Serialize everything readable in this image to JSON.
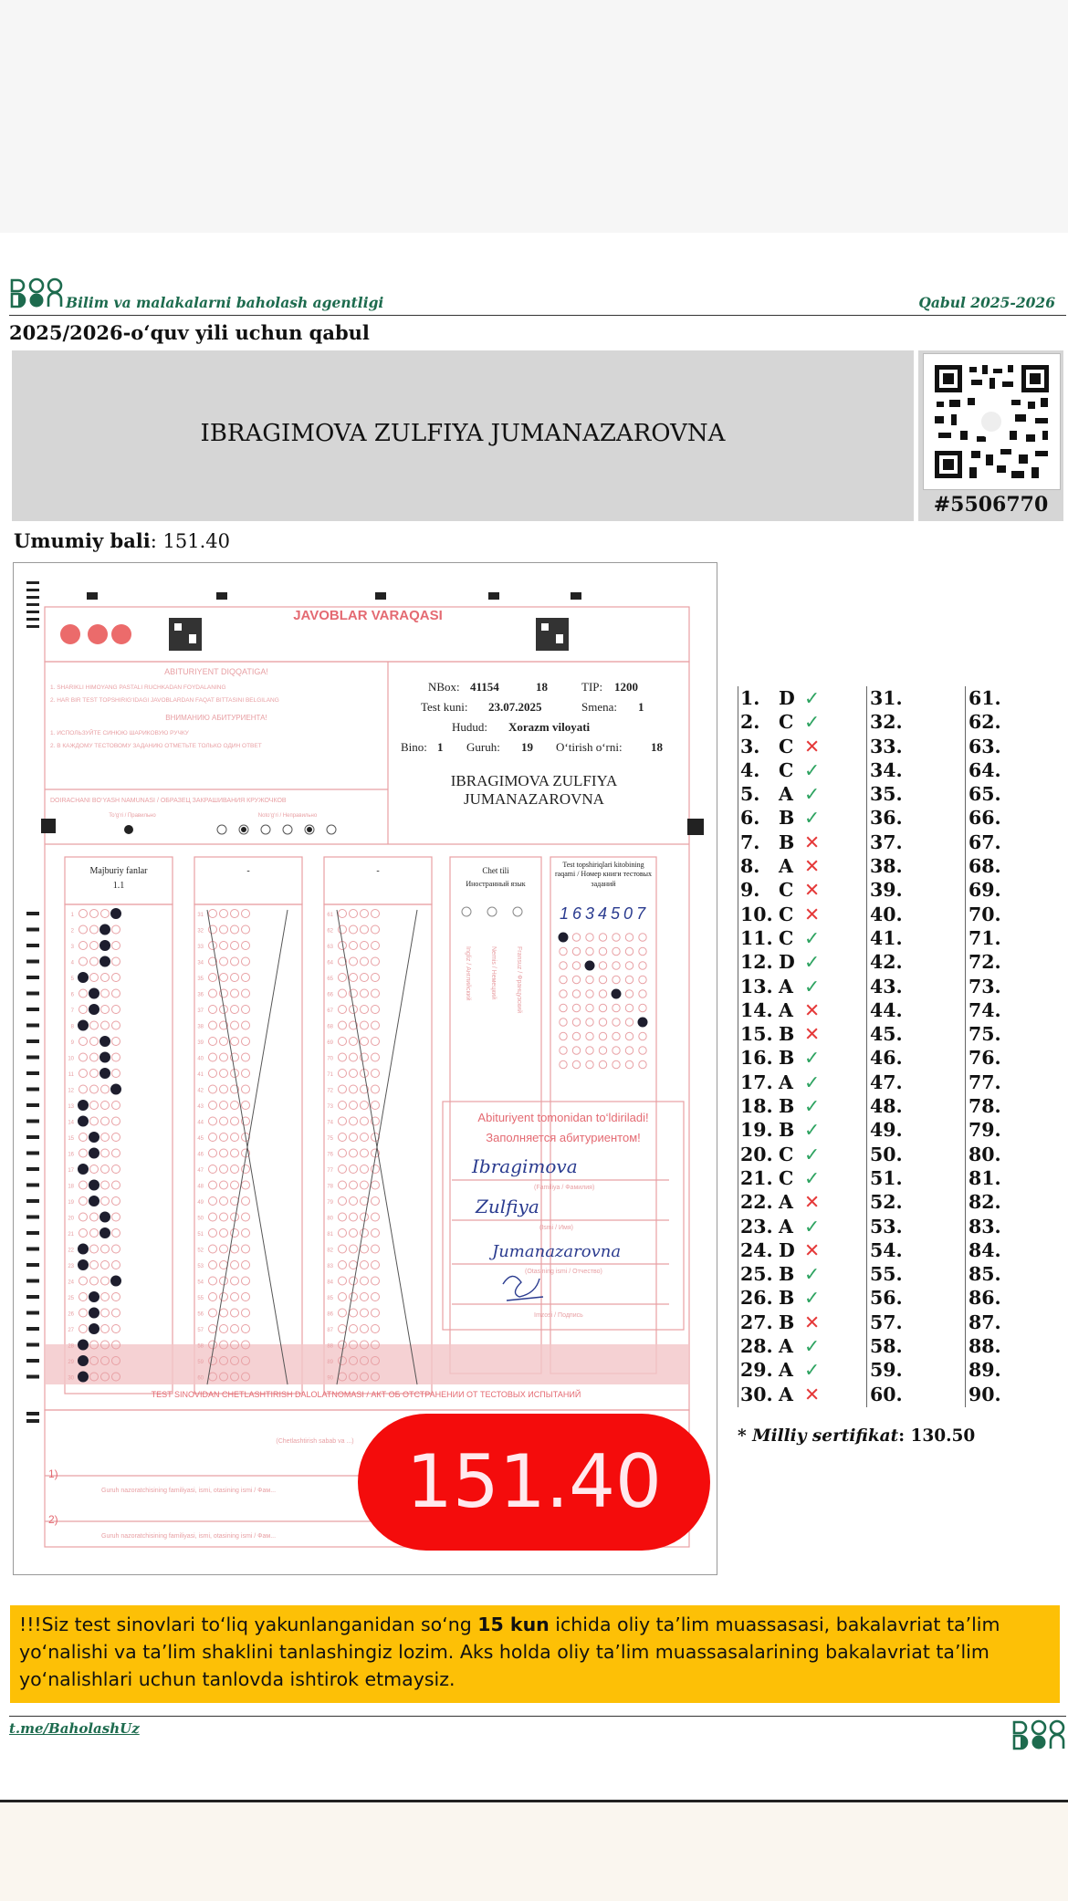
{
  "header": {
    "agency": "Bilim va malakalarni baholash agentligi",
    "year": "Qabul 2025-2026",
    "admission_title": "2025/2026-o‘quv yili uchun qabul"
  },
  "candidate": {
    "full_name": "IBRAGIMOVA ZULFIYA JUMANAZAROVNA",
    "id": "#5506770",
    "score_label": "Umumiy bali",
    "score_value": "151.40"
  },
  "sheet": {
    "title": "JAVOBLAR VARAQASI",
    "attention_title": "ABITURIYENT DIQQATIGA!",
    "attention_1": "1. SHARIKLI HIMOYANG PASTALI RUCHKADAN FOYDALANING",
    "attention_2": "2. HAR BIR TEST TOPSHIRIG‘IDAGI JAVOBLARDAN FAQAT BITTASINI BELGILANG",
    "attention_ru_title": "ВНИМАНИЮ АБИТУРИЕНТА!",
    "attention_ru_1": "1. ИСПОЛЬЗУЙТЕ СИНЮЮ ШАРИКОВУЮ РУЧКУ",
    "attention_ru_2": "2. В КАЖДОМУ ТЕСТОВОМУ ЗАДАНИЮ ОТМЕТЬТЕ ТОЛЬКО ОДИН ОТВЕТ",
    "sample_title": "DOIRACHANI BO‘YASH NAMUNASI / ОБРАЗЕЦ ЗАКРАШИВАНИЯ КРУЖОЧКОВ",
    "sample_right": "To‘g‘ri / Правильно",
    "sample_wrong": "Noto‘g‘ri / Неправильно",
    "nbox_label": "NBox:",
    "nbox_value": "41154",
    "nbox_extra": "18",
    "tip_label": "TIP:",
    "tip_value": "1200",
    "test_date_label": "Test kuni:",
    "test_date_value": "23.07.2025",
    "smena_label": "Smena:",
    "smena_value": "1",
    "region_label": "Hudud:",
    "region_value": "Xorazm viloyati",
    "bino_label": "Bino:",
    "bino_value": "1",
    "group_label": "Guruh:",
    "group_value": "19",
    "seat_label": "O‘tirish o‘rni:",
    "seat_value": "18",
    "name_line1": "IBRAGIMOVA ZULFIYA",
    "name_line2": "JUMANAZAROVNA",
    "section1_title": "Majburiy fanlar",
    "section1_sub": "1.1",
    "section2_title": "-",
    "section3_title": "-",
    "lang_title": "Chet tili",
    "lang_title_ru": "Иностранный язык",
    "lang_opts": [
      "Ingliz / Английский",
      "Nemis / Немецкий",
      "Fransuz / Французский"
    ],
    "book_title": "Test topshiriqlari kitobining raqami / Номер книги тестовых заданий",
    "book_number": "1634507",
    "fill_title": "Abituriyent tomonidan to‘ldiriladi!",
    "fill_title_ru": "Заполняется абитуриентом!",
    "sig_surname": "Ibragimova",
    "sig_surname_label": "(Familiya / Фамилия)",
    "sig_name": "Zulfiya",
    "sig_name_label": "(Ismi / Имя)",
    "sig_patronymic": "Jumanazarovna",
    "sig_patronymic_label": "(Otasining ismi / Отчество)",
    "sig_sign_label": "Imzosi / Подпись",
    "removal_title": "TEST SINOVIDAN CHETLASHTIRISH DALOLATNOMASI / АКТ ОБ ОТСТРАНЕНИИ ОТ ТЕСТОВЫХ ИСПЫТАНИЙ",
    "removal_reason": "(Chetlashtirish sabab va ...)",
    "row1": "1)",
    "row2": "2)",
    "observer_line": "Guruh nazoratchisining familiyasi, ismi, otasining ismi / Фам..."
  },
  "answers": [
    {
      "n": "1.",
      "a": "D",
      "s": "ok"
    },
    {
      "n": "2.",
      "a": "C",
      "s": "ok"
    },
    {
      "n": "3.",
      "a": "C",
      "s": "bad"
    },
    {
      "n": "4.",
      "a": "C",
      "s": "ok"
    },
    {
      "n": "5.",
      "a": "A",
      "s": "ok"
    },
    {
      "n": "6.",
      "a": "B",
      "s": "ok"
    },
    {
      "n": "7.",
      "a": "B",
      "s": "bad"
    },
    {
      "n": "8.",
      "a": "A",
      "s": "bad"
    },
    {
      "n": "9.",
      "a": "C",
      "s": "bad"
    },
    {
      "n": "10.",
      "a": "C",
      "s": "bad"
    },
    {
      "n": "11.",
      "a": "C",
      "s": "ok"
    },
    {
      "n": "12.",
      "a": "D",
      "s": "ok"
    },
    {
      "n": "13.",
      "a": "A",
      "s": "ok"
    },
    {
      "n": "14.",
      "a": "A",
      "s": "bad"
    },
    {
      "n": "15.",
      "a": "B",
      "s": "bad"
    },
    {
      "n": "16.",
      "a": "B",
      "s": "ok"
    },
    {
      "n": "17.",
      "a": "A",
      "s": "ok"
    },
    {
      "n": "18.",
      "a": "B",
      "s": "ok"
    },
    {
      "n": "19.",
      "a": "B",
      "s": "ok"
    },
    {
      "n": "20.",
      "a": "C",
      "s": "ok"
    },
    {
      "n": "21.",
      "a": "C",
      "s": "ok"
    },
    {
      "n": "22.",
      "a": "A",
      "s": "bad"
    },
    {
      "n": "23.",
      "a": "A",
      "s": "ok"
    },
    {
      "n": "24.",
      "a": "D",
      "s": "bad"
    },
    {
      "n": "25.",
      "a": "B",
      "s": "ok"
    },
    {
      "n": "26.",
      "a": "B",
      "s": "ok"
    },
    {
      "n": "27.",
      "a": "B",
      "s": "bad"
    },
    {
      "n": "28.",
      "a": "A",
      "s": "ok"
    },
    {
      "n": "29.",
      "a": "A",
      "s": "ok"
    },
    {
      "n": "30.",
      "a": "A",
      "s": "bad"
    }
  ],
  "answer_marks": {
    "ok": "✓",
    "bad": "✕"
  },
  "answers_col2": [
    "31.",
    "32.",
    "33.",
    "34.",
    "35.",
    "36.",
    "37.",
    "38.",
    "39.",
    "40.",
    "41.",
    "42.",
    "43.",
    "44.",
    "45.",
    "46.",
    "47.",
    "48.",
    "49.",
    "50.",
    "51.",
    "52.",
    "53.",
    "54.",
    "55.",
    "56.",
    "57.",
    "58.",
    "59.",
    "60."
  ],
  "answers_col3": [
    "61.",
    "62.",
    "63.",
    "64.",
    "65.",
    "66.",
    "67.",
    "68.",
    "69.",
    "70.",
    "71.",
    "72.",
    "73.",
    "74.",
    "75.",
    "76.",
    "77.",
    "78.",
    "79.",
    "80.",
    "81.",
    "82.",
    "83.",
    "84.",
    "85.",
    "86.",
    "87.",
    "88.",
    "89.",
    "90."
  ],
  "milliy": {
    "label": "* Milliy sertifikat",
    "value": ": 130.50"
  },
  "notice": {
    "prefix": "!!!Siz test sinovlari to‘liq yakunlanganidan so‘ng ",
    "bold": "15 kun",
    "suffix": " ichida oliy ta’lim muassasasi, bakalavriat ta’lim yo‘nalishi va ta’lim shaklini tanlashingiz lozim. Aks holda oliy ta’lim muassasalarining bakalavriat ta’lim yo‘nalishlari uchun tanlovda ishtirok etmaysiz."
  },
  "footer": {
    "link": "t.me/BaholashUz"
  },
  "colors": {
    "brand_green": "#1d6b4e",
    "ok_green": "#2da360",
    "bad_red": "#e53a3a",
    "notice_yellow": "#fdc006",
    "badge_red": "#f40c0c",
    "sheet_pink": "#e8a0a4"
  }
}
